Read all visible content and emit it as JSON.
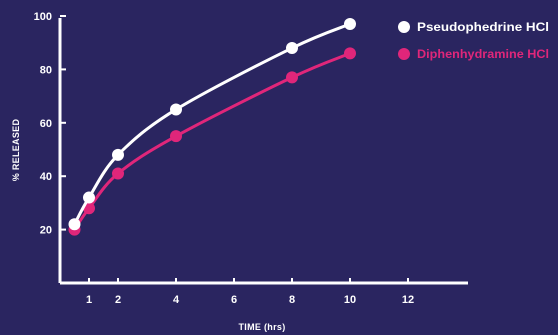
{
  "chart_data": {
    "type": "line",
    "title": "",
    "xlabel": "TIME (hrs)",
    "ylabel": "% RELEASED",
    "x_ticks": [
      "1",
      "2",
      "4",
      "6",
      "8",
      "10",
      "12"
    ],
    "y_ticks": [
      "20",
      "40",
      "60",
      "80",
      "100"
    ],
    "ylim": [
      0,
      100
    ],
    "grid": false,
    "legend_position": "top-right",
    "series": [
      {
        "name": "Pseudophedrine HCl",
        "color": "#ffffff",
        "x": [
          "0.5",
          "1",
          "2",
          "4",
          "8",
          "10"
        ],
        "y": [
          22,
          32,
          48,
          65,
          88,
          97
        ]
      },
      {
        "name": "Diphenhydramine HCl",
        "color": "#e0267a",
        "x": [
          "0.5",
          "1",
          "2",
          "4",
          "8",
          "10"
        ],
        "y": [
          20,
          28,
          41,
          55,
          77,
          86
        ]
      }
    ]
  }
}
